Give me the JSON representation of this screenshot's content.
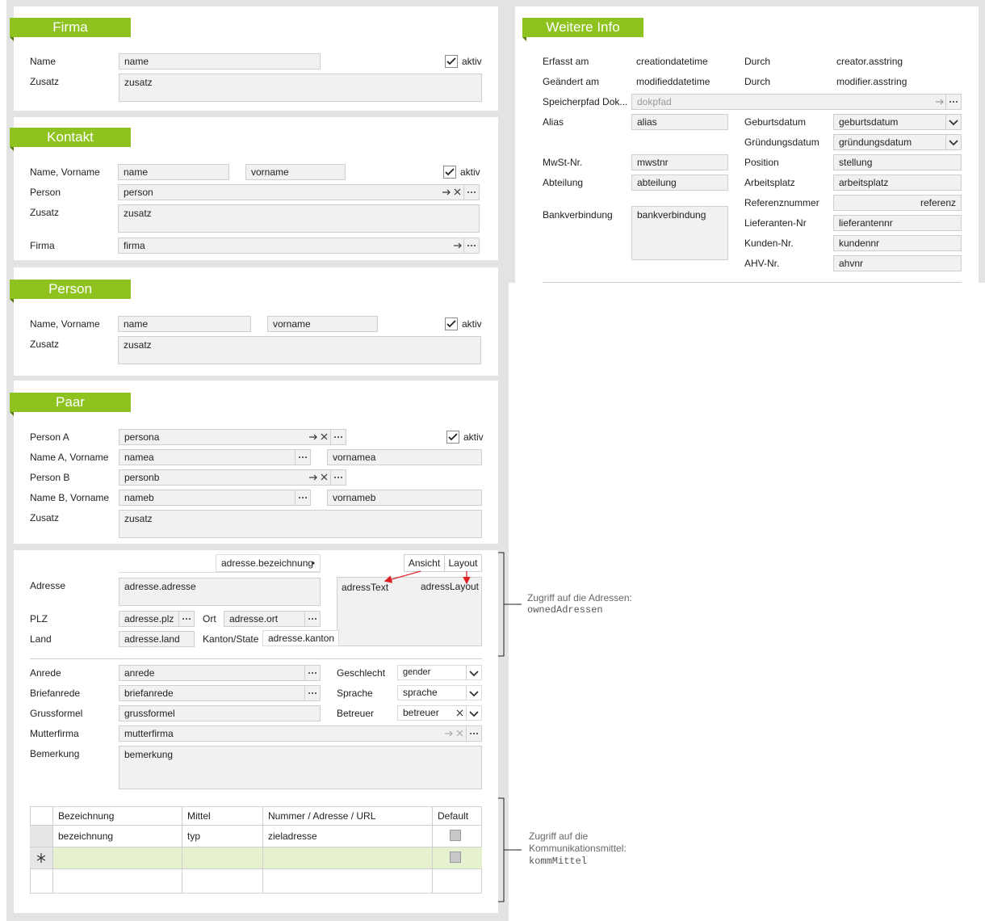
{
  "firma": {
    "title": "Firma",
    "labels": [
      "Name",
      "Zusatz"
    ],
    "fields": [
      "name",
      "zusatz"
    ],
    "checkbox": "aktiv"
  },
  "kontakt": {
    "title": "Kontakt",
    "labels": [
      "Name, Vorname",
      "Person",
      "Zusatz",
      "Firma"
    ],
    "fields": [
      "name",
      "vorname",
      "person",
      "zusatz",
      "firma"
    ],
    "checkbox": "aktiv"
  },
  "person": {
    "title": "Person",
    "labels": [
      "Name, Vorname",
      "Zusatz"
    ],
    "fields": [
      "name",
      "vorname",
      "zusatz"
    ],
    "checkbox": "aktiv"
  },
  "paar": {
    "title": "Paar",
    "labels": [
      "Person A",
      "Name A, Vorname",
      "Person B",
      "Name B, Vorname",
      "Zusatz"
    ],
    "fields": [
      "persona",
      "namea",
      "vornamea",
      "personb",
      "nameb",
      "vornameb",
      "zusatz"
    ],
    "checkbox": "aktiv"
  },
  "adresse": {
    "bezeichnung": "adresse.bezeichnung",
    "tabs": [
      "Ansicht",
      "Layout"
    ],
    "labels": [
      "Adresse",
      "PLZ",
      "Ort",
      "Land",
      "Kanton/State"
    ],
    "fields": [
      "adresse.adresse",
      "adresse.plz",
      "adresse.ort",
      "adresse.land",
      "adresse.kanton"
    ],
    "preview": [
      "adressText",
      "adressLayout"
    ],
    "annotation": [
      "Zugriff auf die Adressen:",
      "ownedAdressen"
    ]
  },
  "details": {
    "labels": [
      "Anrede",
      "Briefanrede",
      "Grussformel",
      "Mutterfirma",
      "Bemerkung",
      "Geschlecht",
      "Sprache",
      "Betreuer"
    ],
    "fields": [
      "anrede",
      "briefanrede",
      "grussformel",
      "mutterfirma",
      "bemerkung",
      "gender",
      "sprache",
      "betreuer"
    ]
  },
  "komm": {
    "columns": [
      "Bezeichnung",
      "Mittel",
      "Nummer / Adresse / URL",
      "Default"
    ],
    "rows": [
      [
        "bezeichnung",
        "typ",
        "zieladresse"
      ]
    ],
    "annotation": [
      "Zugriff auf die",
      "Kommunikationsmittel:",
      "kommMittel"
    ]
  },
  "weitere": {
    "title": "Weitere Info",
    "labels": [
      "Erfasst am",
      "Geändert am",
      "Speicherpfad Dok...",
      "Alias",
      "MwSt-Nr.",
      "Abteilung",
      "Bankverbindung"
    ],
    "values": [
      "creationdatetime",
      "modifieddatetime"
    ],
    "labels2": [
      "Durch",
      "Durch",
      "Geburtsdatum",
      "Gründungsdatum",
      "Position",
      "Arbeitsplatz",
      "Referenznummer",
      "Lieferanten-Nr",
      "Kunden-Nr.",
      "AHV-Nr."
    ],
    "values2": [
      "creator.asstring",
      "modifier.asstring"
    ],
    "fields": [
      "dokpfad",
      "alias",
      "mwstnr",
      "abteilung",
      "bankverbindung"
    ],
    "fields2": [
      "geburtsdatum",
      "gründungsdatum",
      "stellung",
      "arbeitsplatz",
      "referenz",
      "lieferantennr",
      "kundennr",
      "ahvnr"
    ]
  }
}
